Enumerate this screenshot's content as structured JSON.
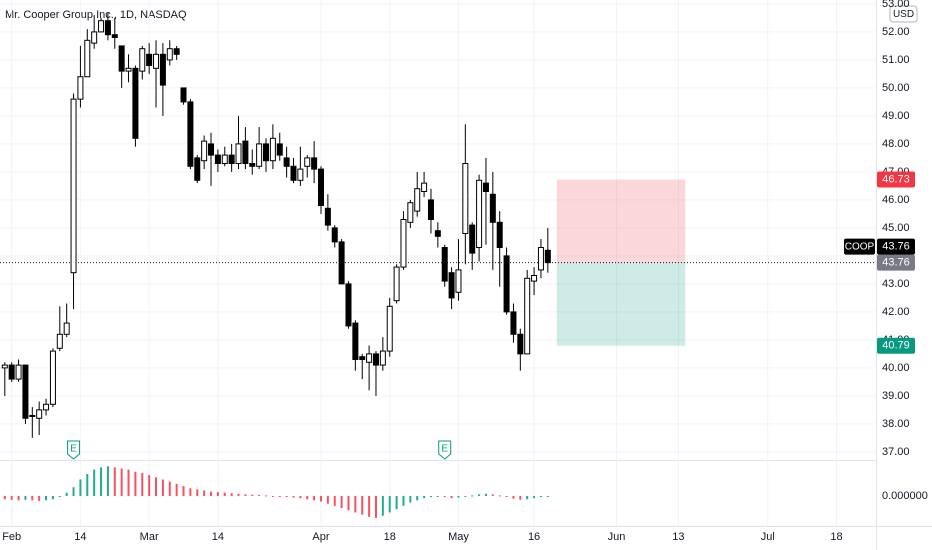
{
  "chart_data": {
    "type": "candlestick",
    "title": "Mr. Cooper Group Inc., 1D, NASDAQ",
    "symbol": "COOP",
    "currency": "USD",
    "x": [
      0,
      1,
      2,
      3,
      4,
      5,
      6,
      7,
      8,
      9,
      10,
      11,
      12,
      13,
      14,
      15,
      16,
      17,
      18,
      19,
      20,
      21,
      22,
      23,
      24,
      25,
      26,
      27,
      28,
      29,
      30,
      31,
      32,
      33,
      34,
      35,
      36,
      37,
      38,
      39,
      40,
      41,
      42,
      43,
      44,
      45,
      46,
      47,
      48,
      49,
      50,
      51,
      52,
      53,
      54,
      55,
      56,
      57,
      58,
      59,
      60,
      61,
      62,
      63,
      64,
      65,
      66,
      67,
      68,
      69,
      70,
      71,
      72,
      73,
      74,
      75,
      76,
      77,
      78,
      79
    ],
    "open": [
      40.0,
      40.1,
      39.6,
      40.1,
      38.3,
      38.2,
      38.5,
      38.7,
      40.7,
      41.2,
      43.4,
      49.6,
      50.4,
      51.6,
      52.0,
      52.4,
      51.9,
      51.5,
      50.6,
      50.7,
      50.6,
      51.2,
      50.7,
      51.2,
      51.0,
      51.4,
      50.0,
      49.5,
      47.5,
      47.4,
      48.0,
      47.6,
      47.3,
      47.6,
      47.3,
      48.1,
      47.3,
      47.2,
      48.0,
      47.4,
      48.0,
      47.5,
      47.2,
      46.7,
      47.2,
      47.5,
      47.1,
      45.7,
      45.0,
      44.5,
      43.0,
      41.6,
      40.4,
      40.2,
      40.5,
      40.1,
      40.6,
      42.4,
      43.6,
      45.2,
      45.6,
      46.3,
      46.0,
      44.9,
      44.3,
      43.4,
      42.7,
      44.8,
      45.1,
      44.3,
      46.6,
      46.2,
      45.2,
      44.0,
      42.0,
      41.2,
      40.5,
      43.1,
      43.5,
      44.2
    ],
    "high": [
      40.2,
      40.2,
      40.3,
      40.1,
      38.6,
      38.8,
      38.9,
      40.7,
      42.2,
      42.3,
      49.8,
      51.5,
      52.1,
      52.6,
      52.5,
      52.7,
      52.5,
      51.5,
      51.2,
      50.8,
      51.5,
      51.6,
      51.7,
      51.6,
      51.7,
      51.5,
      50.0,
      49.6,
      47.6,
      48.3,
      48.4,
      47.8,
      47.9,
      48.0,
      49.0,
      48.6,
      47.8,
      48.6,
      48.2,
      48.7,
      48.4,
      47.9,
      47.5,
      47.9,
      47.6,
      48.1,
      47.2,
      46.2,
      45.1,
      44.6,
      43.1,
      41.7,
      40.5,
      40.8,
      40.6,
      41.1,
      42.5,
      43.7,
      45.6,
      46.0,
      47.0,
      47.0,
      46.4,
      45.2,
      44.4,
      43.6,
      44.6,
      48.7,
      45.2,
      46.9,
      47.5,
      47.0,
      45.6,
      44.3,
      42.3,
      41.4,
      43.5,
      43.6,
      44.6,
      45.0
    ],
    "low": [
      39.0,
      39.5,
      39.5,
      38.0,
      37.5,
      37.6,
      38.3,
      38.6,
      40.6,
      41.1,
      42.1,
      49.3,
      50.4,
      51.4,
      52.0,
      51.7,
      51.4,
      50.0,
      50.2,
      47.9,
      50.3,
      50.5,
      49.3,
      49.0,
      50.8,
      51.0,
      49.4,
      47.1,
      46.6,
      47.1,
      46.5,
      47.0,
      47.2,
      47.0,
      47.1,
      47.1,
      46.9,
      47.1,
      47.0,
      47.1,
      47.4,
      46.8,
      46.6,
      46.5,
      46.8,
      46.6,
      45.5,
      44.9,
      44.3,
      43.0,
      41.4,
      39.9,
      39.6,
      39.2,
      39.0,
      39.9,
      40.4,
      42.3,
      43.5,
      45.0,
      45.4,
      46.1,
      44.8,
      44.3,
      42.9,
      42.1,
      42.4,
      43.7,
      43.5,
      43.8,
      44.4,
      43.5,
      42.9,
      41.9,
      40.9,
      39.9,
      40.5,
      42.6,
      43.2,
      43.4
    ],
    "close": [
      40.1,
      39.6,
      40.1,
      38.2,
      38.3,
      38.5,
      38.7,
      40.6,
      41.2,
      41.6,
      49.6,
      50.4,
      51.7,
      52.0,
      52.4,
      51.9,
      51.8,
      50.6,
      50.7,
      48.2,
      51.4,
      50.8,
      51.2,
      50.1,
      51.4,
      51.2,
      49.5,
      47.2,
      46.7,
      48.1,
      47.6,
      47.3,
      47.6,
      47.3,
      48.0,
      47.3,
      47.2,
      48.0,
      47.4,
      48.2,
      47.6,
      47.2,
      46.7,
      47.1,
      47.5,
      47.1,
      45.8,
      45.1,
      44.5,
      43.0,
      41.5,
      40.3,
      40.3,
      40.5,
      40.1,
      40.6,
      42.2,
      43.6,
      45.3,
      45.9,
      46.4,
      46.6,
      45.3,
      44.7,
      43.1,
      42.5,
      43.5,
      47.3,
      44.1,
      46.7,
      46.3,
      45.2,
      44.3,
      42.0,
      41.2,
      40.5,
      43.2,
      43.3,
      44.3,
      43.76
    ],
    "up_color": "#ffffff",
    "down_color": "#000000",
    "border_color": "#000000",
    "xlim": [
      -0.7,
      126.6
    ],
    "xticks": [
      {
        "value": 1,
        "label": "Feb"
      },
      {
        "value": 11,
        "label": "14"
      },
      {
        "value": 21,
        "label": "Mar"
      },
      {
        "value": 31,
        "label": "14"
      },
      {
        "value": 46,
        "label": "Apr"
      },
      {
        "value": 56,
        "label": "18"
      },
      {
        "value": 66,
        "label": "May"
      },
      {
        "value": 77,
        "label": "16"
      },
      {
        "value": 89,
        "label": "Jun"
      },
      {
        "value": 98,
        "label": "13"
      },
      {
        "value": 111,
        "label": "Jul"
      },
      {
        "value": 121,
        "label": "18"
      }
    ],
    "ylim": [
      36.71,
      53.14
    ],
    "yticks": [
      {
        "value": 37,
        "label": "37.00"
      },
      {
        "value": 38,
        "label": "38.00"
      },
      {
        "value": 39,
        "label": "39.00"
      },
      {
        "value": 40,
        "label": "40.00"
      },
      {
        "value": 41,
        "label": "41.00"
      },
      {
        "value": 42,
        "label": "42.00"
      },
      {
        "value": 43,
        "label": "43.00"
      },
      {
        "value": 44,
        "label": "44.00"
      },
      {
        "value": 45,
        "label": "45.00"
      },
      {
        "value": 46,
        "label": "46.00"
      },
      {
        "value": 47,
        "label": "47.00"
      },
      {
        "value": 48,
        "label": "48.00"
      },
      {
        "value": 49,
        "label": "49.00"
      },
      {
        "value": 50,
        "label": "50.00"
      },
      {
        "value": 51,
        "label": "51.00"
      },
      {
        "value": 52,
        "label": "52.00"
      },
      {
        "value": 53,
        "label": "53.00"
      }
    ],
    "grid": true,
    "position": {
      "start": 80.3,
      "end": 99,
      "entry": 43.76,
      "stop": 46.73,
      "target": 40.79,
      "stop_color": "#f23645",
      "target_color": "#089981",
      "entry_color": "#787b86"
    },
    "events": [
      {
        "x": 10,
        "label": "E"
      },
      {
        "x": 64,
        "label": "E"
      }
    ],
    "oscillator": {
      "values": [
        -0.3,
        -0.35,
        -0.4,
        -0.35,
        -0.4,
        -0.45,
        -0.4,
        -0.3,
        -0.1,
        0.3,
        0.8,
        1.5,
        2.0,
        2.4,
        2.6,
        2.7,
        2.6,
        2.5,
        2.4,
        2.2,
        2.1,
        1.9,
        1.7,
        1.5,
        1.3,
        1.1,
        0.9,
        0.7,
        0.6,
        0.5,
        0.4,
        0.35,
        0.3,
        0.25,
        0.2,
        0.15,
        0.12,
        0.1,
        0.05,
        0,
        -0.05,
        -0.1,
        -0.15,
        -0.2,
        -0.3,
        -0.4,
        -0.5,
        -0.7,
        -0.9,
        -1.1,
        -1.3,
        -1.5,
        -1.7,
        -1.9,
        -2.0,
        -1.8,
        -1.5,
        -1.2,
        -0.9,
        -0.6,
        -0.4,
        -0.2,
        -0.1,
        0,
        -0.1,
        -0.2,
        -0.15,
        -0.05,
        0.05,
        0.15,
        0.2,
        0.15,
        0.05,
        -0.1,
        -0.25,
        -0.35,
        -0.3,
        -0.2,
        -0.1,
        -0.05
      ],
      "up_color": "#22ab94",
      "down_color": "#f7525f",
      "ylim": [
        -2.64,
        3.09
      ],
      "yticks": [
        {
          "value": 0,
          "label": "0.000000"
        }
      ]
    }
  }
}
